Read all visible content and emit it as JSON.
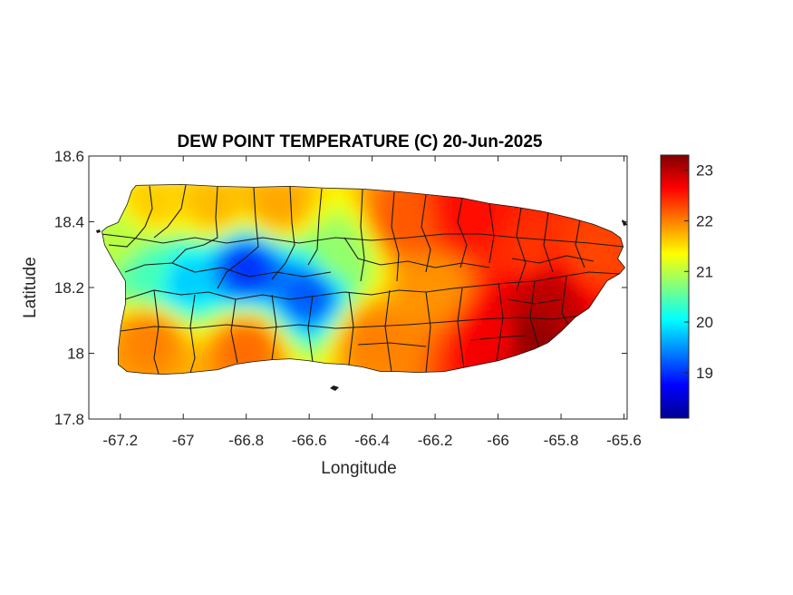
{
  "chart_data": {
    "type": "heatmap",
    "title": "DEW POINT TEMPERATURE (C) 20-Jun-2025",
    "xlabel": "Longitude",
    "ylabel": "Latitude",
    "xlim": [
      -67.3,
      -65.59
    ],
    "ylim": [
      17.8,
      18.6
    ],
    "x_ticks": [
      -67.2,
      -67,
      -66.8,
      -66.6,
      -66.4,
      -66.2,
      -66,
      -65.8,
      -65.6
    ],
    "y_ticks": [
      17.8,
      18,
      18.2,
      18.4,
      18.6
    ],
    "x_tick_labels": [
      "-67.2",
      "-67",
      "-66.8",
      "-66.6",
      "-66.4",
      "-66.2",
      "-66",
      "-65.8",
      "-65.6"
    ],
    "y_tick_labels": [
      "17.8",
      "18",
      "18.2",
      "18.4",
      "18.6"
    ],
    "colorbar": {
      "min": 18.1,
      "max": 23.3,
      "ticks": [
        19,
        20,
        21,
        22,
        23
      ],
      "tick_labels": [
        "19",
        "20",
        "21",
        "22",
        "23"
      ],
      "colormap": "jet"
    },
    "field_samples": [
      {
        "lon": -67.2,
        "lat": 18.35,
        "value": 21.0
      },
      {
        "lon": -67.1,
        "lat": 18.45,
        "value": 21.6
      },
      {
        "lon": -67.1,
        "lat": 18.25,
        "value": 20.4
      },
      {
        "lon": -67.1,
        "lat": 18.05,
        "value": 22.0
      },
      {
        "lon": -67.0,
        "lat": 18.22,
        "value": 19.8
      },
      {
        "lon": -66.9,
        "lat": 18.45,
        "value": 21.7
      },
      {
        "lon": -66.8,
        "lat": 18.26,
        "value": 19.0
      },
      {
        "lon": -66.8,
        "lat": 18.02,
        "value": 22.1
      },
      {
        "lon": -66.7,
        "lat": 18.45,
        "value": 21.8
      },
      {
        "lon": -66.6,
        "lat": 18.18,
        "value": 19.2
      },
      {
        "lon": -66.5,
        "lat": 18.3,
        "value": 20.8
      },
      {
        "lon": -66.4,
        "lat": 18.05,
        "value": 22.0
      },
      {
        "lon": -66.3,
        "lat": 18.4,
        "value": 22.2
      },
      {
        "lon": -66.2,
        "lat": 18.2,
        "value": 21.9
      },
      {
        "lon": -66.1,
        "lat": 18.42,
        "value": 22.6
      },
      {
        "lon": -66.0,
        "lat": 18.05,
        "value": 22.7
      },
      {
        "lon": -65.9,
        "lat": 18.3,
        "value": 22.4
      },
      {
        "lon": -65.85,
        "lat": 18.18,
        "value": 23.0
      },
      {
        "lon": -65.9,
        "lat": 18.05,
        "value": 23.2
      },
      {
        "lon": -65.7,
        "lat": 18.3,
        "value": 22.3
      }
    ]
  }
}
